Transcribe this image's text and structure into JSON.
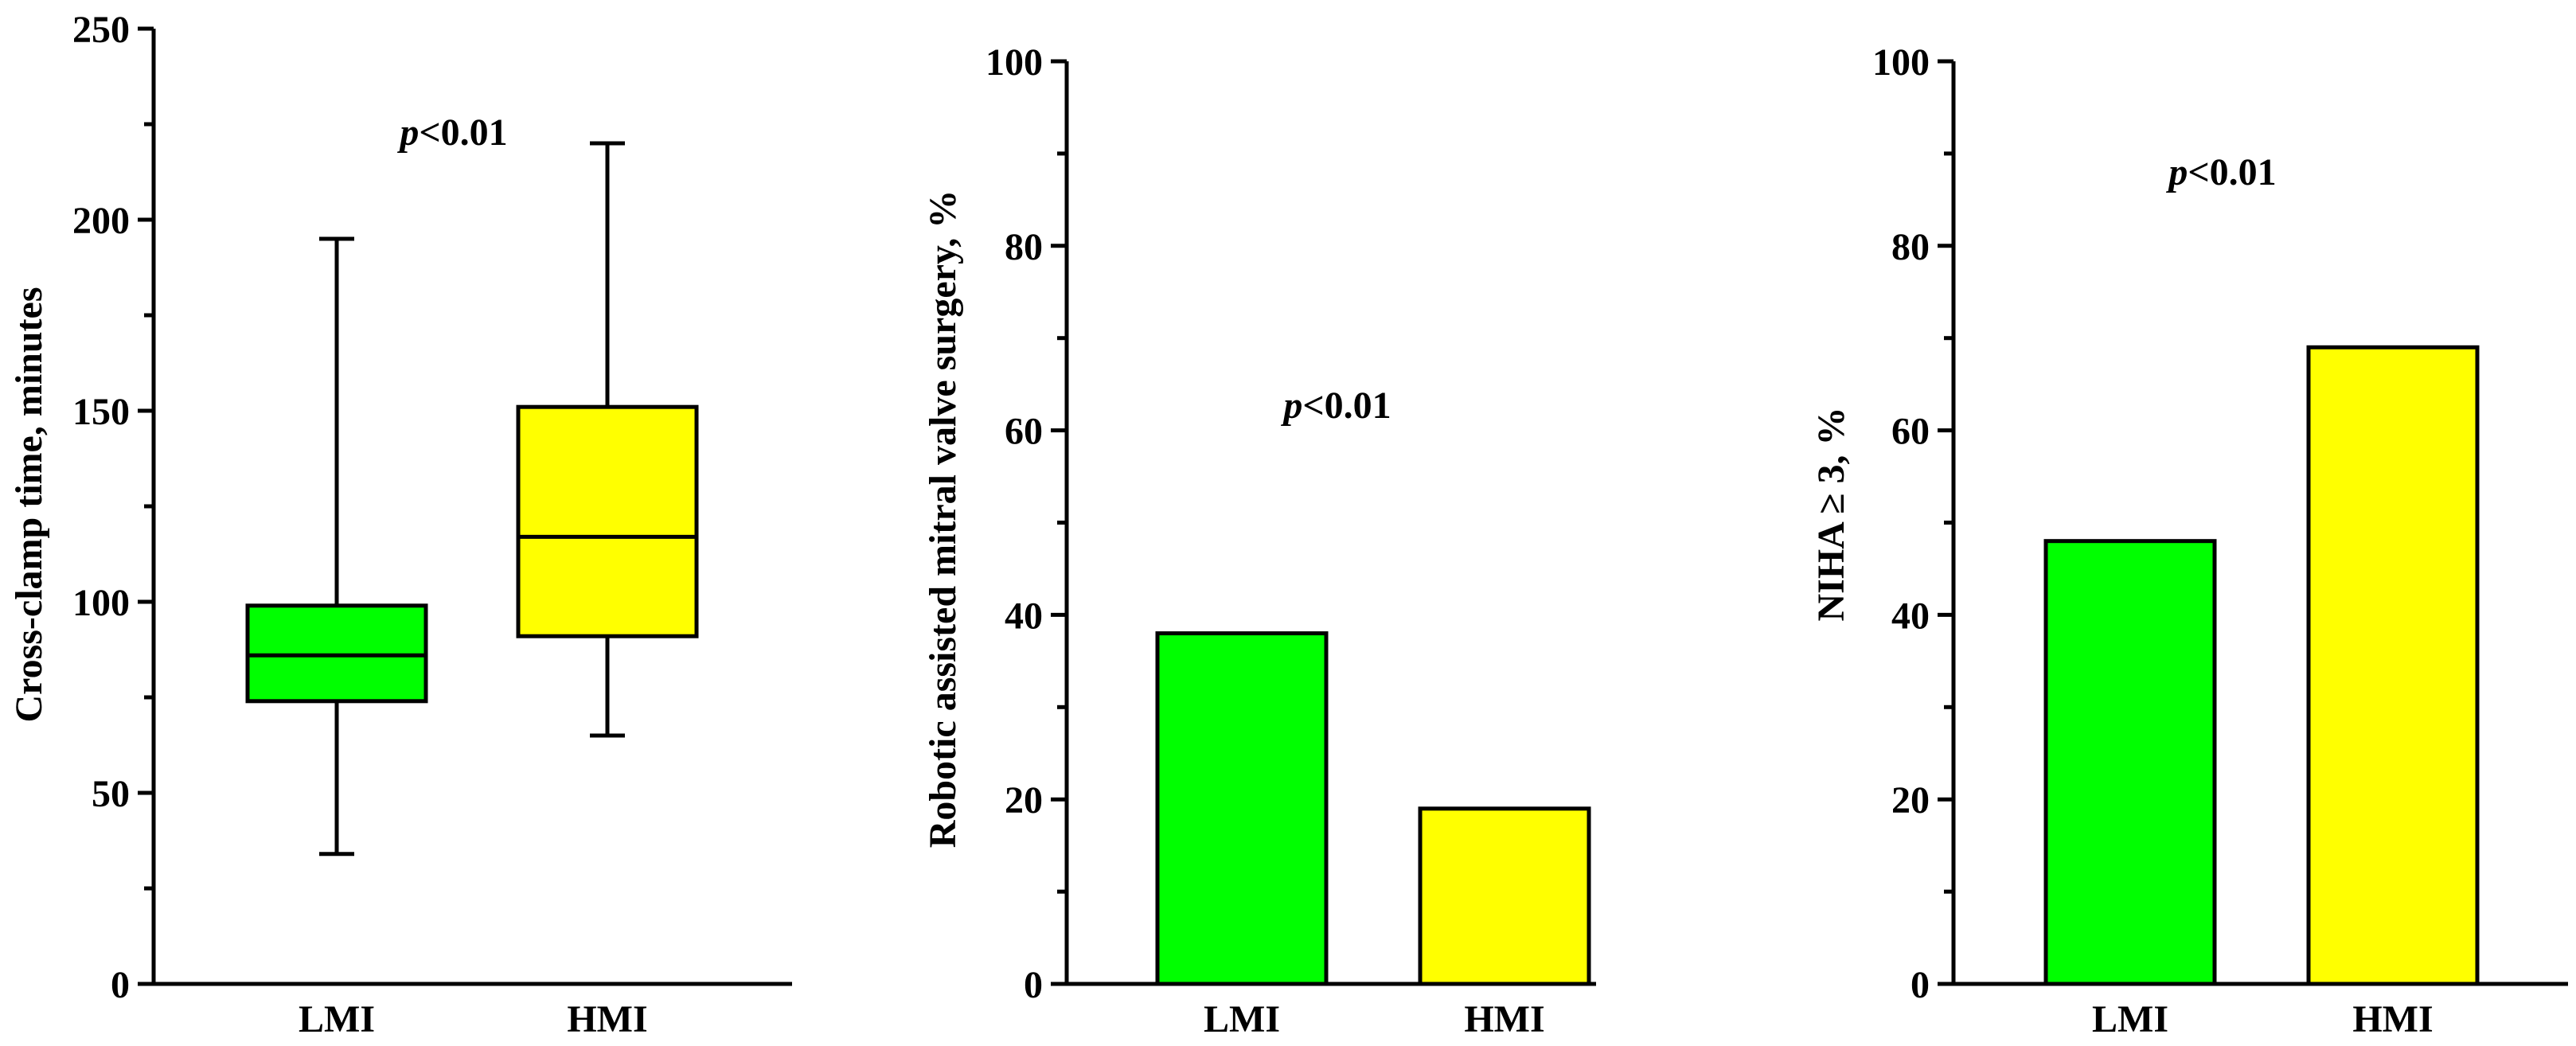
{
  "colors": {
    "LMI": "#00ff00",
    "HMI": "#ffff00",
    "ink": "#000000"
  },
  "chart_data": [
    {
      "type": "box",
      "ylabel": "Cross-clamp time, minutes",
      "ylim": [
        0,
        250
      ],
      "ticks": [
        "0",
        "50",
        "100",
        "150",
        "200",
        "250"
      ],
      "categories": [
        "LMI",
        "HMI"
      ],
      "boxes": [
        {
          "name": "LMI",
          "min": 34,
          "q1": 74,
          "median": 86,
          "q3": 99,
          "max": 195
        },
        {
          "name": "HMI",
          "min": 65,
          "q1": 91,
          "median": 117,
          "q3": 151,
          "max": 220
        }
      ],
      "annotation": {
        "p": "p",
        "rest": "<0.01"
      }
    },
    {
      "type": "bar",
      "ylabel": "Robotic assisted mitral valve surgery, %",
      "ylim": [
        0,
        100
      ],
      "ticks": [
        "0",
        "20",
        "40",
        "60",
        "80",
        "100"
      ],
      "categories": [
        "LMI",
        "HMI"
      ],
      "values": [
        38,
        19
      ],
      "annotation": {
        "p": "p",
        "rest": "<0.01"
      }
    },
    {
      "type": "bar",
      "ylabel": "NIHA ≥ 3, %",
      "ylim": [
        0,
        100
      ],
      "ticks": [
        "0",
        "20",
        "40",
        "60",
        "80",
        "100"
      ],
      "categories": [
        "LMI",
        "HMI"
      ],
      "values": [
        48,
        69
      ],
      "annotation": {
        "p": "p",
        "rest": "<0.01"
      }
    }
  ]
}
